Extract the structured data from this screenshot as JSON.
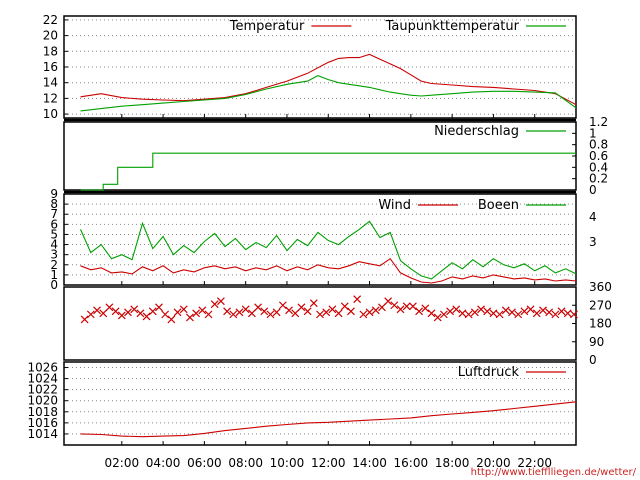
{
  "chart_data": [
    {
      "type": "line",
      "panel": "temperature",
      "ylim": [
        9.5,
        22.5
      ],
      "yticks": [
        "10",
        "12",
        "14",
        "16",
        "18",
        "20",
        "22"
      ],
      "legend_placement": "top",
      "grid": true,
      "series": [
        {
          "name": "Temperatur",
          "color": "#cc0000",
          "x": [
            0,
            1,
            2,
            3,
            4,
            5,
            6,
            7,
            8,
            9,
            10,
            11,
            12,
            12.5,
            13,
            13.5,
            14,
            14.5,
            15,
            15.5,
            16,
            16.5,
            17,
            18,
            19,
            20,
            21,
            22,
            23,
            24
          ],
          "values": [
            12.2,
            12.6,
            12.1,
            11.9,
            11.8,
            11.7,
            11.9,
            12.1,
            12.6,
            13.4,
            14.2,
            15.2,
            16.6,
            17.1,
            17.2,
            17.2,
            17.6,
            17.0,
            16.4,
            15.8,
            15.0,
            14.2,
            13.9,
            13.7,
            13.5,
            13.4,
            13.2,
            13.0,
            12.6,
            11.2
          ]
        },
        {
          "name": "Taupunkttemperatur",
          "color": "#00a000",
          "x": [
            0,
            1,
            2,
            3,
            4,
            5,
            6,
            7,
            8,
            9,
            10,
            11,
            11.5,
            12,
            12.5,
            13,
            13.5,
            14,
            14.5,
            15,
            15.5,
            16,
            16.5,
            17,
            18,
            19,
            20,
            21,
            22,
            23,
            24
          ],
          "values": [
            10.4,
            10.7,
            11.0,
            11.2,
            11.4,
            11.6,
            11.8,
            12.0,
            12.5,
            13.2,
            13.8,
            14.2,
            14.9,
            14.4,
            14.0,
            13.8,
            13.6,
            13.4,
            13.1,
            12.8,
            12.6,
            12.4,
            12.3,
            12.4,
            12.6,
            12.8,
            12.9,
            12.9,
            12.8,
            12.7,
            10.8
          ]
        }
      ]
    },
    {
      "type": "line",
      "panel": "precipitation",
      "ylim": [
        0,
        1.2
      ],
      "yticks": [
        "0",
        "0.2",
        "0.4",
        "0.6",
        "0.8",
        "1",
        "1.2"
      ],
      "y_axis_side": "right",
      "legend_placement": "top-right",
      "series": [
        {
          "name": "Niederschlag",
          "color": "#00a000",
          "x": [
            0,
            1.1,
            1.1,
            1.8,
            1.8,
            3.5,
            3.5,
            24
          ],
          "values": [
            0,
            0,
            0.1,
            0.1,
            0.4,
            0.4,
            0.65,
            0.65
          ]
        }
      ]
    },
    {
      "type": "line",
      "panel": "wind",
      "ylim": [
        0,
        9
      ],
      "yticks": [
        "0",
        "1",
        "2",
        "3",
        "4",
        "5",
        "6",
        "7",
        "8",
        "9"
      ],
      "right_scale_labels": [
        "3",
        "4"
      ],
      "legend_placement": "top",
      "series": [
        {
          "name": "Wind",
          "color": "#cc0000",
          "x": [
            0,
            0.5,
            1,
            1.5,
            2,
            2.5,
            3,
            3.5,
            4,
            4.5,
            5,
            5.5,
            6,
            6.5,
            7,
            7.5,
            8,
            8.5,
            9,
            9.5,
            10,
            10.5,
            11,
            11.5,
            12,
            12.5,
            13,
            13.5,
            14,
            14.5,
            15,
            15.5,
            16,
            16.5,
            17,
            17.5,
            18,
            18.5,
            19,
            19.5,
            20,
            20.5,
            21,
            21.5,
            22,
            22.5,
            23,
            23.5,
            24
          ],
          "values": [
            1.9,
            1.5,
            1.7,
            1.2,
            1.3,
            1.1,
            1.8,
            1.4,
            1.9,
            1.2,
            1.5,
            1.3,
            1.7,
            1.9,
            1.6,
            1.8,
            1.4,
            1.7,
            1.5,
            1.9,
            1.4,
            1.8,
            1.5,
            2.0,
            1.7,
            1.6,
            1.9,
            2.3,
            2.1,
            1.9,
            2.6,
            1.2,
            0.7,
            0.3,
            0.2,
            0.4,
            0.8,
            0.6,
            0.9,
            0.7,
            1.0,
            0.8,
            0.6,
            0.7,
            0.5,
            0.6,
            0.4,
            0.5,
            0.4
          ]
        },
        {
          "name": "Boeen",
          "color": "#00a000",
          "x": [
            0,
            0.5,
            1,
            1.5,
            2,
            2.5,
            3,
            3.5,
            4,
            4.5,
            5,
            5.5,
            6,
            6.5,
            7,
            7.5,
            8,
            8.5,
            9,
            9.5,
            10,
            10.5,
            11,
            11.5,
            12,
            12.5,
            13,
            13.5,
            14,
            14.5,
            15,
            15.5,
            16,
            16.5,
            17,
            17.5,
            18,
            18.5,
            19,
            19.5,
            20,
            20.5,
            21,
            21.5,
            22,
            22.5,
            23,
            23.5,
            24
          ],
          "values": [
            5.5,
            3.2,
            4.0,
            2.6,
            3.0,
            2.5,
            6.1,
            3.6,
            4.8,
            3.0,
            3.9,
            3.2,
            4.3,
            5.1,
            3.8,
            4.6,
            3.5,
            4.2,
            3.7,
            4.9,
            3.4,
            4.5,
            3.9,
            5.2,
            4.4,
            4.0,
            4.8,
            5.5,
            6.3,
            4.7,
            5.2,
            2.4,
            1.6,
            0.9,
            0.6,
            1.4,
            2.2,
            1.6,
            2.5,
            1.8,
            2.6,
            2.0,
            1.7,
            2.1,
            1.4,
            1.9,
            1.2,
            1.6,
            1.1
          ]
        }
      ]
    },
    {
      "type": "scatter",
      "panel": "wind_direction",
      "ylim": [
        0,
        360
      ],
      "yticks": [
        "0",
        "90",
        "180",
        "270",
        "360"
      ],
      "y_axis_side": "right",
      "series": [
        {
          "color": "#cc0000",
          "x": [
            0.2,
            0.5,
            0.8,
            1.1,
            1.4,
            1.7,
            2.0,
            2.3,
            2.6,
            2.9,
            3.2,
            3.5,
            3.8,
            4.1,
            4.4,
            4.7,
            5.0,
            5.3,
            5.6,
            5.9,
            6.2,
            6.5,
            6.8,
            7.1,
            7.4,
            7.7,
            8.0,
            8.3,
            8.6,
            8.9,
            9.2,
            9.5,
            9.8,
            10.1,
            10.4,
            10.7,
            11.0,
            11.3,
            11.6,
            11.9,
            12.2,
            12.5,
            12.8,
            13.1,
            13.4,
            13.7,
            14.0,
            14.3,
            14.6,
            14.9,
            15.2,
            15.5,
            15.8,
            16.1,
            16.4,
            16.7,
            17.0,
            17.3,
            17.6,
            17.9,
            18.2,
            18.5,
            18.8,
            19.1,
            19.4,
            19.7,
            20.0,
            20.3,
            20.6,
            20.9,
            21.2,
            21.5,
            21.8,
            22.1,
            22.4,
            22.7,
            23.0,
            23.3,
            23.6,
            23.9
          ],
          "values": [
            200,
            225,
            245,
            230,
            260,
            240,
            220,
            235,
            250,
            230,
            215,
            240,
            260,
            225,
            200,
            235,
            250,
            210,
            230,
            245,
            225,
            275,
            290,
            240,
            225,
            235,
            250,
            230,
            260,
            240,
            225,
            235,
            270,
            245,
            230,
            260,
            240,
            280,
            225,
            235,
            250,
            230,
            265,
            240,
            300,
            225,
            235,
            245,
            260,
            290,
            270,
            250,
            265,
            265,
            240,
            255,
            230,
            210,
            225,
            240,
            250,
            230,
            225,
            235,
            250,
            240,
            230,
            225,
            245,
            235,
            225,
            240,
            250,
            230,
            245,
            235,
            225,
            240,
            230,
            225
          ]
        }
      ]
    },
    {
      "type": "line",
      "panel": "pressure",
      "ylim": [
        1012,
        1027
      ],
      "yticks": [
        "1014",
        "1016",
        "1018",
        "1020",
        "1022",
        "1024",
        "1026"
      ],
      "legend_placement": "top-right",
      "series": [
        {
          "name": "Luftdruck",
          "color": "#cc0000",
          "x": [
            0,
            1,
            2,
            3,
            4,
            5,
            6,
            7,
            8,
            9,
            10,
            11,
            12,
            13,
            14,
            15,
            16,
            17,
            18,
            19,
            20,
            21,
            22,
            23,
            24
          ],
          "values": [
            1014.0,
            1013.9,
            1013.6,
            1013.5,
            1013.6,
            1013.7,
            1014.1,
            1014.6,
            1015.0,
            1015.4,
            1015.7,
            1016.0,
            1016.1,
            1016.3,
            1016.5,
            1016.7,
            1016.9,
            1017.3,
            1017.6,
            1017.9,
            1018.2,
            1018.6,
            1019.0,
            1019.4,
            1019.8
          ]
        }
      ]
    }
  ],
  "x_axis": {
    "range_hours": [
      -0.8,
      24
    ],
    "ticks": [
      2,
      4,
      6,
      8,
      10,
      12,
      14,
      16,
      18,
      20,
      22
    ],
    "tick_labels": [
      "02:00",
      "04:00",
      "06:00",
      "08:00",
      "10:00",
      "12:00",
      "14:00",
      "16:00",
      "18:00",
      "20:00",
      "22:00"
    ]
  },
  "footer": {
    "url": "http://www.tiefflliegen.de/wetter/"
  }
}
